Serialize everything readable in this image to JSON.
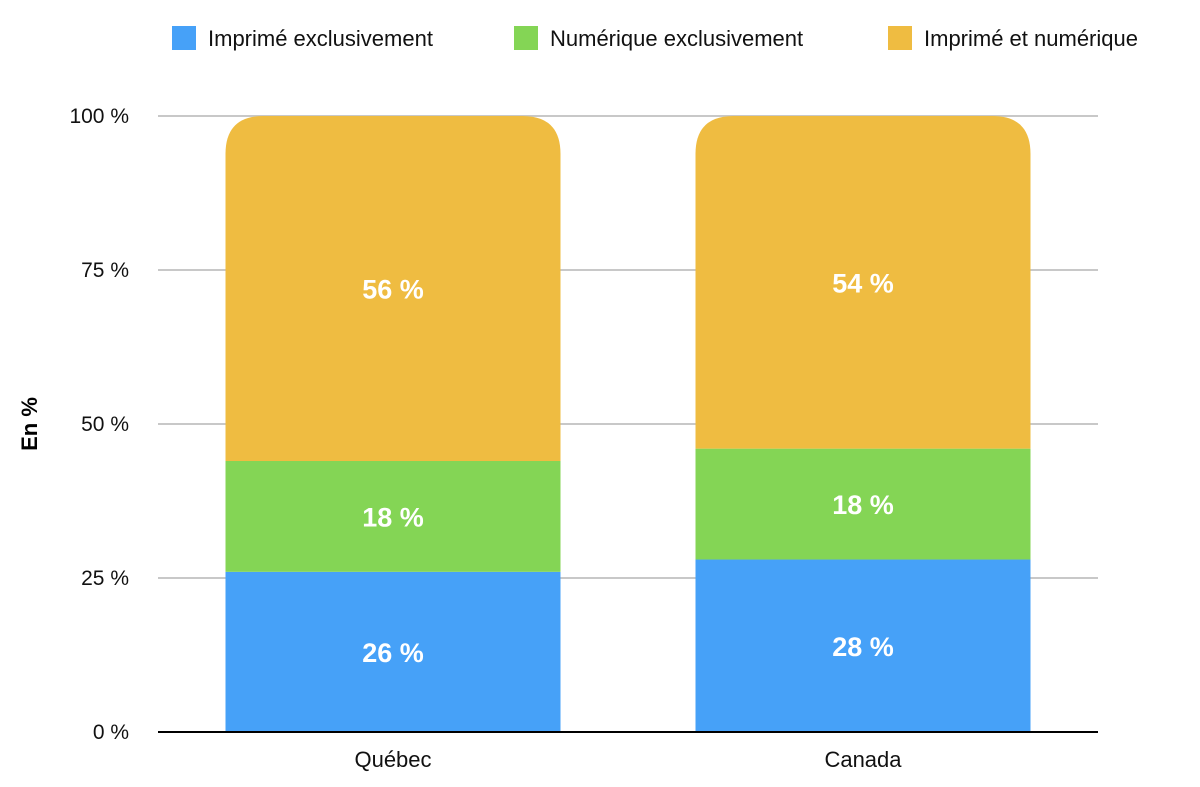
{
  "chart_data": {
    "type": "bar",
    "stacked": true,
    "categories": [
      "Québec",
      "Canada"
    ],
    "series": [
      {
        "name": "Imprimé exclusivement",
        "values": [
          26,
          28
        ],
        "labels": [
          "26 %",
          "28 %"
        ],
        "color": "#46a1f8"
      },
      {
        "name": "Numérique exclusivement",
        "values": [
          18,
          18
        ],
        "labels": [
          "18 %",
          "18 %"
        ],
        "color": "#84d555"
      },
      {
        "name": "Imprimé et numérique",
        "values": [
          56,
          54
        ],
        "labels": [
          "56 %",
          "54 %"
        ],
        "color": "#efbc41"
      }
    ],
    "ylabel": "En %",
    "xlabel": "",
    "ylim": [
      0,
      100
    ],
    "yticks": [
      0,
      25,
      50,
      75,
      100
    ],
    "ytick_labels": [
      "0 %",
      "25 %",
      "50 %",
      "75 %",
      "100 %"
    ],
    "grid": true,
    "legend_position": "top"
  }
}
